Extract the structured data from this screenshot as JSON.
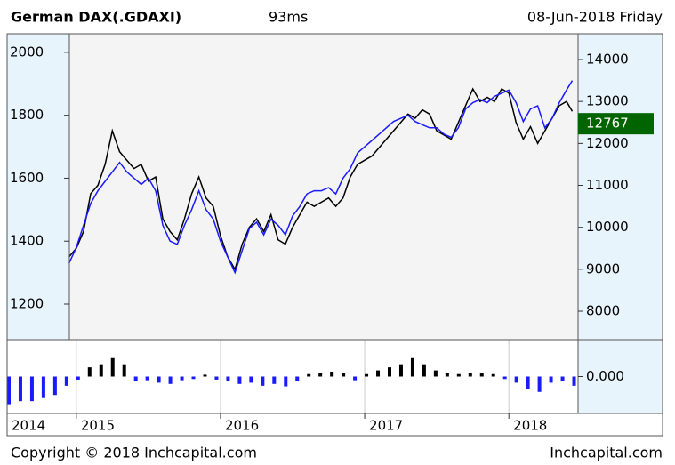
{
  "chart_data": {
    "type": "line",
    "title": "German DAX(.GDAXI)",
    "subtitle": "93ms",
    "date": "08-Jun-2018 Friday",
    "footer_left": "Copyright © 2018 Inchcapital.com",
    "footer_right": "Inchcapital.com",
    "xlim": [
      2014.52,
      2018.48
    ],
    "xticks": [
      2014,
      2015,
      2016,
      2017,
      2018
    ],
    "ylim": [
      1087,
      2059
    ],
    "yticks": [
      1200,
      1400,
      1600,
      1800,
      2000
    ],
    "y2lim": [
      7322,
      14615
    ],
    "y2ticks": [
      8000,
      9000,
      10000,
      11000,
      12000,
      13000,
      14000
    ],
    "x": [
      2014.95,
      2015.0,
      2015.05,
      2015.1,
      2015.15,
      2015.2,
      2015.25,
      2015.3,
      2015.35,
      2015.4,
      2015.45,
      2015.5,
      2015.55,
      2015.6,
      2015.65,
      2015.7,
      2015.75,
      2015.8,
      2015.85,
      2015.9,
      2015.95,
      2016.0,
      2016.05,
      2016.1,
      2016.15,
      2016.2,
      2016.25,
      2016.3,
      2016.35,
      2016.4,
      2016.45,
      2016.5,
      2016.55,
      2016.6,
      2016.65,
      2016.7,
      2016.75,
      2016.8,
      2016.85,
      2016.9,
      2016.95,
      2017.0,
      2017.05,
      2017.1,
      2017.15,
      2017.2,
      2017.25,
      2017.3,
      2017.35,
      2017.4,
      2017.45,
      2017.5,
      2017.55,
      2017.6,
      2017.65,
      2017.7,
      2017.75,
      2017.8,
      2017.85,
      2017.9,
      2017.95,
      2018.0,
      2018.05,
      2018.1,
      2018.15,
      2018.2,
      2018.25,
      2018.3,
      2018.35,
      2018.4,
      2018.44
    ],
    "series": [
      {
        "color": "#000000",
        "axis": "y2",
        "values": [
          9300,
          9500,
          9900,
          10800,
          11000,
          11500,
          12300,
          11800,
          11600,
          11400,
          11500,
          11100,
          11200,
          10200,
          9900,
          9700,
          10200,
          10800,
          11200,
          10700,
          10500,
          9800,
          9300,
          9000,
          9600,
          10000,
          10200,
          9900,
          10300,
          9700,
          9600,
          10000,
          10300,
          10600,
          10500,
          10600,
          10700,
          10500,
          10700,
          11200,
          11500,
          11600,
          11700,
          11900,
          12100,
          12300,
          12500,
          12700,
          12600,
          12800,
          12700,
          12300,
          12200,
          12100,
          12500,
          12900,
          13300,
          13000,
          13100,
          13000,
          13300,
          13200,
          12500,
          12100,
          12400,
          12000,
          12300,
          12600,
          12900,
          13000,
          12767
        ]
      },
      {
        "color": "#1a1aff",
        "axis": "y",
        "values": [
          1330,
          1380,
          1450,
          1520,
          1560,
          1590,
          1620,
          1650,
          1620,
          1600,
          1580,
          1600,
          1560,
          1450,
          1400,
          1390,
          1450,
          1500,
          1560,
          1500,
          1470,
          1400,
          1350,
          1300,
          1370,
          1440,
          1460,
          1420,
          1470,
          1450,
          1420,
          1480,
          1510,
          1550,
          1560,
          1560,
          1570,
          1550,
          1600,
          1630,
          1680,
          1700,
          1720,
          1740,
          1760,
          1780,
          1790,
          1800,
          1780,
          1770,
          1760,
          1760,
          1740,
          1730,
          1760,
          1820,
          1840,
          1850,
          1840,
          1860,
          1870,
          1880,
          1840,
          1780,
          1820,
          1830,
          1760,
          1790,
          1840,
          1880,
          1910
        ]
      }
    ],
    "last_color": "#006400",
    "oscillator": {
      "type": "bar",
      "pos_color": "#000000",
      "neg_color": "#1a1aff",
      "ylim": [
        -0.06,
        0.06
      ],
      "yticks": [
        {
          "value": 0,
          "label": "0.000"
        }
      ],
      "x": [
        2014.52,
        2014.6,
        2014.68,
        2014.76,
        2014.84,
        2014.92,
        2015.0,
        2015.08,
        2015.16,
        2015.24,
        2015.32,
        2015.4,
        2015.48,
        2015.56,
        2015.64,
        2015.72,
        2015.8,
        2015.88,
        2015.96,
        2016.04,
        2016.12,
        2016.2,
        2016.28,
        2016.36,
        2016.44,
        2016.52,
        2016.6,
        2016.68,
        2016.76,
        2016.84,
        2016.92,
        2017.0,
        2017.08,
        2017.16,
        2017.24,
        2017.32,
        2017.4,
        2017.48,
        2017.56,
        2017.64,
        2017.72,
        2017.8,
        2017.88,
        2017.96,
        2018.04,
        2018.12,
        2018.2,
        2018.28,
        2018.36,
        2018.44
      ],
      "values": [
        -0.045,
        -0.04,
        -0.04,
        -0.035,
        -0.03,
        -0.015,
        -0.005,
        0.015,
        0.02,
        0.03,
        0.02,
        -0.008,
        -0.006,
        -0.01,
        -0.012,
        -0.006,
        -0.004,
        0.003,
        -0.005,
        -0.008,
        -0.012,
        -0.01,
        -0.015,
        -0.012,
        -0.016,
        -0.008,
        0.004,
        0.006,
        0.008,
        0.005,
        -0.006,
        0.004,
        0.01,
        0.015,
        0.02,
        0.03,
        0.02,
        0.01,
        0.006,
        0.004,
        0.006,
        0.005,
        0.004,
        -0.004,
        -0.01,
        -0.02,
        -0.025,
        -0.01,
        -0.008,
        -0.015
      ]
    }
  }
}
